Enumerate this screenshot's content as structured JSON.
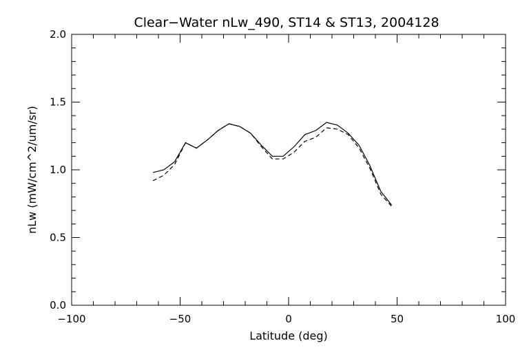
{
  "chart_data": {
    "type": "line",
    "title": "Clear−Water nLw_490, ST14 & ST13, 2004128",
    "xlabel": "Latitude (deg)",
    "ylabel": "nLw (mW/cm^2/um/sr)",
    "xlim": [
      -100,
      100
    ],
    "ylim": [
      0.0,
      2.0
    ],
    "x_major_ticks": [
      -100,
      -50,
      0,
      50,
      100
    ],
    "x_tick_labels": [
      "−100",
      "−50",
      "0",
      "50",
      "100"
    ],
    "y_major_ticks": [
      0.0,
      0.5,
      1.0,
      1.5,
      2.0
    ],
    "y_tick_labels": [
      "0.0",
      "0.5",
      "1.0",
      "1.5",
      "2.0"
    ],
    "x_minor_step": 10,
    "y_minor_step": 0.1,
    "grid": false,
    "legend": "none",
    "series": [
      {
        "style": "solid",
        "color": "#000000",
        "x": [
          -62.5,
          -57.5,
          -52.5,
          -47.5,
          -42.5,
          -37.5,
          -32.5,
          -27.5,
          -22.5,
          -17.5,
          -12.5,
          -7.5,
          -2.5,
          2.5,
          7.5,
          12.5,
          17.5,
          22.5,
          27.5,
          32.5,
          37.5,
          42.5,
          47.5
        ],
        "y": [
          0.98,
          1.0,
          1.06,
          1.2,
          1.16,
          1.22,
          1.29,
          1.34,
          1.32,
          1.27,
          1.18,
          1.1,
          1.1,
          1.17,
          1.26,
          1.29,
          1.35,
          1.33,
          1.27,
          1.18,
          1.03,
          0.84,
          0.74
        ]
      },
      {
        "style": "dashed",
        "color": "#000000",
        "x": [
          -62.5,
          -57.5,
          -52.5,
          -47.5,
          -42.5,
          -37.5,
          -32.5,
          -27.5,
          -22.5,
          -17.5,
          -12.5,
          -7.5,
          -2.5,
          2.5,
          7.5,
          12.5,
          17.5,
          22.5,
          27.5,
          32.5,
          37.5,
          42.5,
          47.5
        ],
        "y": [
          0.92,
          0.96,
          1.04,
          1.2,
          1.16,
          1.22,
          1.29,
          1.34,
          1.32,
          1.27,
          1.17,
          1.08,
          1.08,
          1.13,
          1.21,
          1.24,
          1.31,
          1.3,
          1.26,
          1.16,
          1.01,
          0.82,
          0.73
        ]
      }
    ]
  }
}
